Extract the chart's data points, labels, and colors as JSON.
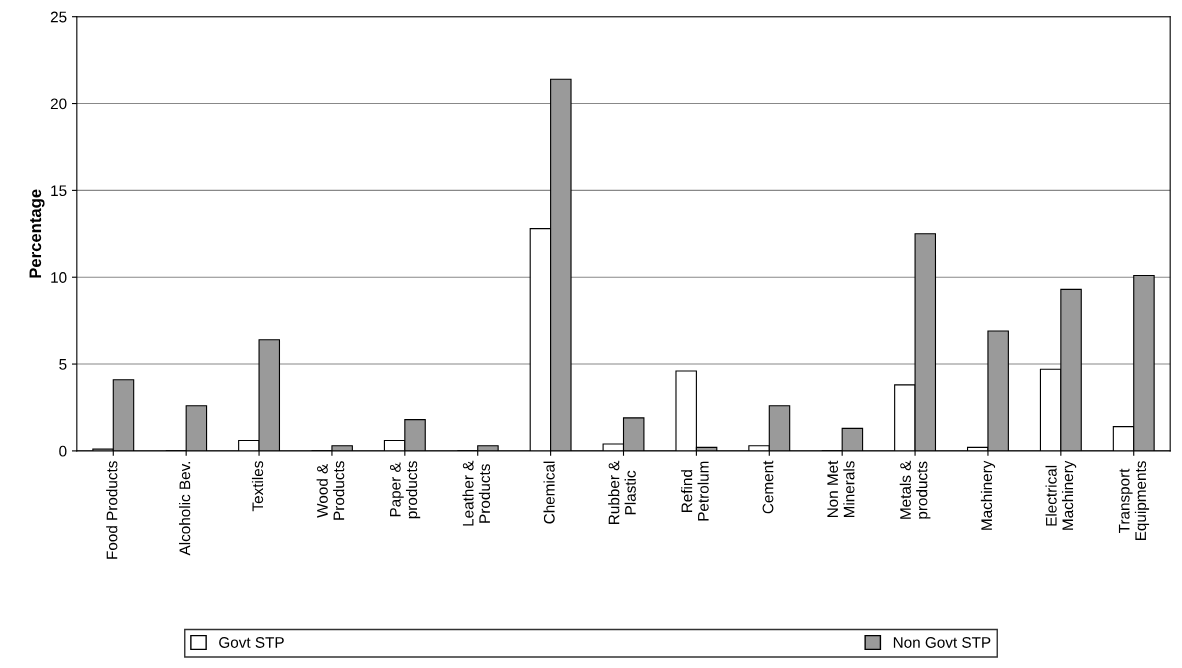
{
  "chart_data": {
    "type": "bar",
    "ylabel": "Percentage",
    "categories": [
      "Food Products",
      "Alcoholic Bev.",
      "Textiles",
      "Wood &\nProducts",
      "Paper &\nproducts",
      "Leather &\nProducts",
      "Chemical",
      "Rubber &\nPlastic",
      "Refind\nPetrolum",
      "Cement",
      "Non Met\nMinerals",
      "Metals &\nproducts",
      "Machinery",
      "Electrical\nMachinery",
      "Transport\nEquipments"
    ],
    "series": [
      {
        "name": "Govt STP",
        "color": "#ffffff",
        "values": [
          0.1,
          0,
          0.6,
          0,
          0.6,
          0,
          12.8,
          0.4,
          4.6,
          0.3,
          0,
          3.8,
          0.2,
          4.7,
          1.4
        ]
      },
      {
        "name": "Non Govt STP",
        "color": "#9a9a9a",
        "values": [
          4.1,
          2.6,
          6.4,
          0.3,
          1.8,
          0.3,
          21.4,
          1.9,
          0.2,
          2.6,
          1.3,
          12.5,
          6.9,
          9.3,
          10.1
        ]
      }
    ],
    "ylim": [
      0,
      25
    ],
    "yticks": [
      0,
      5,
      10,
      15,
      20,
      25
    ],
    "grid": "y",
    "legend": "bottom"
  }
}
